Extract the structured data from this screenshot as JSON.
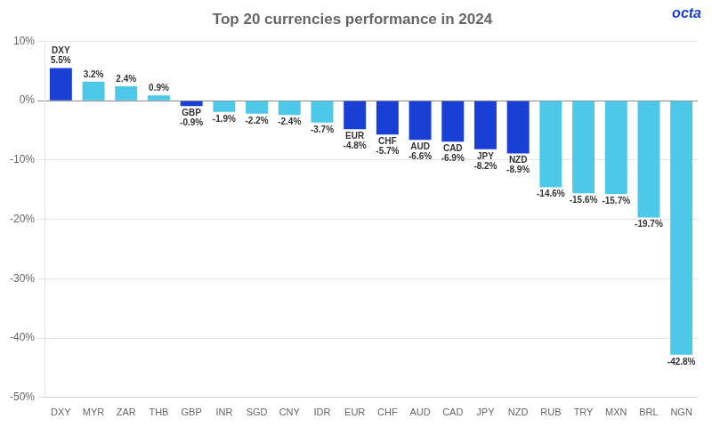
{
  "chart_data": {
    "type": "bar",
    "title": "Top 20 currencies performance in 2024",
    "categories": [
      "DXY",
      "MYR",
      "ZAR",
      "THB",
      "GBP",
      "INR",
      "SGD",
      "CNY",
      "IDR",
      "EUR",
      "CHF",
      "AUD",
      "CAD",
      "JPY",
      "NZD",
      "RUB",
      "TRY",
      "MXN",
      "BRL",
      "NGN"
    ],
    "values": [
      5.5,
      3.2,
      2.4,
      0.9,
      -0.9,
      -1.9,
      -2.2,
      -2.4,
      -3.7,
      -4.8,
      -5.7,
      -6.6,
      -6.9,
      -8.2,
      -8.9,
      -14.6,
      -15.6,
      -15.7,
      -19.7,
      -42.8
    ],
    "value_labels": [
      "DXY\n5.5%",
      "3.2%",
      "2.4%",
      "0.9%",
      "GBP\n-0.9%",
      "-1.9%",
      "-2.2%",
      "-2.4%",
      "-3.7%",
      "EUR\n-4.8%",
      "CHF\n-5.7%",
      "AUD\n-6.6%",
      "CAD\n-6.9%",
      "JPY\n-8.2%",
      "NZD\n-8.9%",
      "-14.6%",
      "-15.6%",
      "-15.7%",
      "-19.7%",
      "-42.8%"
    ],
    "colors": [
      "#1a3fd4",
      "#4ec8e8",
      "#4ec8e8",
      "#4ec8e8",
      "#1a3fd4",
      "#4ec8e8",
      "#4ec8e8",
      "#4ec8e8",
      "#4ec8e8",
      "#1a3fd4",
      "#1a3fd4",
      "#1a3fd4",
      "#1a3fd4",
      "#1a3fd4",
      "#1a3fd4",
      "#4ec8e8",
      "#4ec8e8",
      "#4ec8e8",
      "#4ec8e8",
      "#4ec8e8"
    ],
    "data_labels": true,
    "ylim": [
      -50,
      10
    ],
    "yticks": [
      {
        "value": 10,
        "label": "10%"
      },
      {
        "value": 0,
        "label": "0%"
      },
      {
        "value": -10,
        "label": "-10%"
      },
      {
        "value": -20,
        "label": "-20%"
      },
      {
        "value": -30,
        "label": "-30%"
      },
      {
        "value": -40,
        "label": "-40%"
      },
      {
        "value": -50,
        "label": "-50%"
      }
    ],
    "grid": true,
    "annotations": [
      "octa"
    ]
  }
}
